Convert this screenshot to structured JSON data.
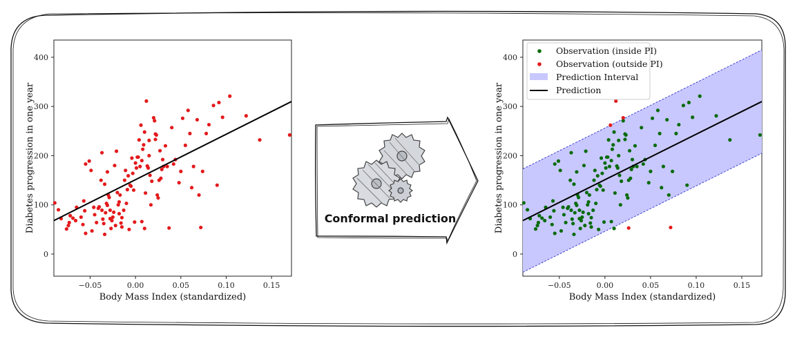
{
  "arrow": {
    "label": "Conformal prediction",
    "icon": "gears-icon"
  },
  "chart_data": [
    {
      "type": "scatter",
      "title": "",
      "xlabel": "Body Mass Index (standardized)",
      "ylabel": "Diabetes progression in one year",
      "xlim": [
        -0.09,
        0.172
      ],
      "ylim": [
        -45,
        435
      ],
      "xticks": [
        "−0.05",
        "0.00",
        "0.05",
        "0.10",
        "0.15"
      ],
      "xtick_values": [
        -0.05,
        0.0,
        0.05,
        0.1,
        0.15
      ],
      "yticks": [
        "0",
        "100",
        "200",
        "300",
        "400"
      ],
      "ytick_values": [
        0,
        100,
        200,
        300,
        400
      ],
      "point_color": "#e31a1c",
      "line_color": "#000000",
      "prediction_line": {
        "x": [
          -0.09,
          0.172
        ],
        "y": [
          68,
          310
        ]
      },
      "points": [
        [
          -0.089,
          104
        ],
        [
          -0.085,
          90
        ],
        [
          -0.082,
          72
        ],
        [
          -0.076,
          51
        ],
        [
          -0.074,
          58
        ],
        [
          -0.073,
          64
        ],
        [
          -0.072,
          78
        ],
        [
          -0.069,
          73
        ],
        [
          -0.066,
          68
        ],
        [
          -0.065,
          95
        ],
        [
          -0.06,
          75
        ],
        [
          -0.058,
          60
        ],
        [
          -0.057,
          108
        ],
        [
          -0.056,
          88
        ],
        [
          -0.055,
          42
        ],
        [
          -0.055,
          183
        ],
        [
          -0.051,
          189
        ],
        [
          -0.049,
          170
        ],
        [
          -0.048,
          47
        ],
        [
          -0.046,
          95
        ],
        [
          -0.045,
          80
        ],
        [
          -0.043,
          64
        ],
        [
          -0.041,
          93
        ],
        [
          -0.04,
          96
        ],
        [
          -0.038,
          150
        ],
        [
          -0.037,
          206
        ],
        [
          -0.037,
          89
        ],
        [
          -0.036,
          71
        ],
        [
          -0.035,
          62
        ],
        [
          -0.034,
          142
        ],
        [
          -0.034,
          40
        ],
        [
          -0.033,
          84
        ],
        [
          -0.032,
          103
        ],
        [
          -0.031,
          99
        ],
        [
          -0.031,
          167
        ],
        [
          -0.03,
          120
        ],
        [
          -0.029,
          115
        ],
        [
          -0.028,
          72
        ],
        [
          -0.028,
          89
        ],
        [
          -0.027,
          52
        ],
        [
          -0.026,
          68
        ],
        [
          -0.025,
          75
        ],
        [
          -0.024,
          85
        ],
        [
          -0.023,
          180
        ],
        [
          -0.022,
          58
        ],
        [
          -0.021,
          209
        ],
        [
          -0.02,
          125
        ],
        [
          -0.019,
          100
        ],
        [
          -0.018,
          82
        ],
        [
          -0.018,
          106
        ],
        [
          -0.017,
          120
        ],
        [
          -0.016,
          63
        ],
        [
          -0.015,
          74
        ],
        [
          -0.015,
          55
        ],
        [
          -0.013,
          89
        ],
        [
          -0.012,
          150
        ],
        [
          -0.011,
          170
        ],
        [
          -0.01,
          103
        ],
        [
          -0.009,
          131
        ],
        [
          -0.008,
          159
        ],
        [
          -0.007,
          50
        ],
        [
          -0.006,
          140
        ],
        [
          -0.005,
          138
        ],
        [
          -0.004,
          195
        ],
        [
          -0.003,
          164
        ],
        [
          -0.002,
          130
        ],
        [
          -0.001,
          65
        ],
        [
          0.0,
          185
        ],
        [
          0.001,
          175
        ],
        [
          0.002,
          197
        ],
        [
          0.003,
          197
        ],
        [
          0.004,
          232
        ],
        [
          0.005,
          178
        ],
        [
          0.006,
          262
        ],
        [
          0.007,
          190
        ],
        [
          0.007,
          66
        ],
        [
          0.008,
          213
        ],
        [
          0.009,
          222
        ],
        [
          0.01,
          52
        ],
        [
          0.01,
          248
        ],
        [
          0.011,
          124
        ],
        [
          0.012,
          311
        ],
        [
          0.013,
          179
        ],
        [
          0.014,
          175
        ],
        [
          0.015,
          200
        ],
        [
          0.015,
          231
        ],
        [
          0.016,
          160
        ],
        [
          0.017,
          100
        ],
        [
          0.018,
          148
        ],
        [
          0.02,
          277
        ],
        [
          0.021,
          271
        ],
        [
          0.022,
          233
        ],
        [
          0.022,
          244
        ],
        [
          0.023,
          242
        ],
        [
          0.024,
          120
        ],
        [
          0.025,
          114
        ],
        [
          0.026,
          150
        ],
        [
          0.027,
          210
        ],
        [
          0.028,
          154
        ],
        [
          0.029,
          172
        ],
        [
          0.03,
          192
        ],
        [
          0.031,
          178
        ],
        [
          0.033,
          220
        ],
        [
          0.035,
          178
        ],
        [
          0.037,
          53
        ],
        [
          0.04,
          257
        ],
        [
          0.042,
          183
        ],
        [
          0.044,
          192
        ],
        [
          0.048,
          145
        ],
        [
          0.05,
          168
        ],
        [
          0.052,
          276
        ],
        [
          0.055,
          221
        ],
        [
          0.058,
          292
        ],
        [
          0.06,
          245
        ],
        [
          0.062,
          135
        ],
        [
          0.064,
          178
        ],
        [
          0.068,
          273
        ],
        [
          0.07,
          120
        ],
        [
          0.072,
          54
        ],
        [
          0.074,
          168
        ],
        [
          0.078,
          245
        ],
        [
          0.081,
          263
        ],
        [
          0.086,
          302
        ],
        [
          0.09,
          140
        ],
        [
          0.092,
          308
        ],
        [
          0.096,
          278
        ],
        [
          0.104,
          321
        ],
        [
          0.122,
          281
        ],
        [
          0.137,
          232
        ],
        [
          0.17,
          242
        ]
      ]
    },
    {
      "type": "scatter",
      "title": "",
      "xlabel": "Body Mass Index (standardized)",
      "ylabel": "Diabetes progression in one year",
      "xlim": [
        -0.09,
        0.172
      ],
      "ylim": [
        -45,
        435
      ],
      "xticks": [
        "−0.05",
        "0.00",
        "0.05",
        "0.10",
        "0.15"
      ],
      "xtick_values": [
        -0.05,
        0.0,
        0.05,
        0.1,
        0.15
      ],
      "yticks": [
        "0",
        "100",
        "200",
        "300",
        "400"
      ],
      "ytick_values": [
        0,
        100,
        200,
        300,
        400
      ],
      "inside_color": "#0a6b0a",
      "outside_color": "#e31a1c",
      "band_color": "#c8c8ff",
      "band_edge_color": "#3333cc",
      "line_color": "#000000",
      "prediction_line": {
        "x": [
          -0.09,
          0.172
        ],
        "y": [
          68,
          310
        ]
      },
      "interval": {
        "x": [
          -0.09,
          0.172
        ],
        "lower": [
          -37,
          205
        ],
        "upper": [
          173,
          415
        ]
      },
      "legend": {
        "position": "upper left",
        "entries": [
          {
            "label": "Observation (inside PI)",
            "kind": "dot-inside"
          },
          {
            "label": "Observation (outside PI)",
            "kind": "dot-outside"
          },
          {
            "label": "Prediction Interval",
            "kind": "band"
          },
          {
            "label": "Prediction",
            "kind": "line"
          }
        ]
      },
      "points_inside": [
        [
          -0.089,
          104
        ],
        [
          -0.085,
          90
        ],
        [
          -0.082,
          72
        ],
        [
          -0.076,
          51
        ],
        [
          -0.074,
          58
        ],
        [
          -0.073,
          64
        ],
        [
          -0.072,
          78
        ],
        [
          -0.069,
          73
        ],
        [
          -0.066,
          68
        ],
        [
          -0.065,
          95
        ],
        [
          -0.06,
          75
        ],
        [
          -0.058,
          60
        ],
        [
          -0.057,
          108
        ],
        [
          -0.056,
          88
        ],
        [
          -0.055,
          42
        ],
        [
          -0.055,
          183
        ],
        [
          -0.051,
          189
        ],
        [
          -0.049,
          170
        ],
        [
          -0.048,
          47
        ],
        [
          -0.046,
          95
        ],
        [
          -0.045,
          80
        ],
        [
          -0.043,
          64
        ],
        [
          -0.041,
          93
        ],
        [
          -0.04,
          96
        ],
        [
          -0.038,
          150
        ],
        [
          -0.037,
          206
        ],
        [
          -0.037,
          89
        ],
        [
          -0.036,
          71
        ],
        [
          -0.035,
          62
        ],
        [
          -0.034,
          142
        ],
        [
          -0.034,
          40
        ],
        [
          -0.033,
          84
        ],
        [
          -0.032,
          103
        ],
        [
          -0.031,
          99
        ],
        [
          -0.031,
          167
        ],
        [
          -0.03,
          120
        ],
        [
          -0.029,
          115
        ],
        [
          -0.028,
          72
        ],
        [
          -0.028,
          89
        ],
        [
          -0.027,
          52
        ],
        [
          -0.026,
          68
        ],
        [
          -0.025,
          75
        ],
        [
          -0.024,
          85
        ],
        [
          -0.023,
          180
        ],
        [
          -0.022,
          58
        ],
        [
          -0.021,
          209
        ],
        [
          -0.02,
          125
        ],
        [
          -0.019,
          100
        ],
        [
          -0.018,
          82
        ],
        [
          -0.018,
          106
        ],
        [
          -0.017,
          120
        ],
        [
          -0.016,
          63
        ],
        [
          -0.015,
          74
        ],
        [
          -0.015,
          55
        ],
        [
          -0.013,
          89
        ],
        [
          -0.012,
          150
        ],
        [
          -0.011,
          170
        ],
        [
          -0.01,
          103
        ],
        [
          -0.009,
          131
        ],
        [
          -0.008,
          159
        ],
        [
          -0.007,
          50
        ],
        [
          -0.006,
          140
        ],
        [
          -0.005,
          138
        ],
        [
          -0.004,
          195
        ],
        [
          -0.003,
          164
        ],
        [
          -0.002,
          130
        ],
        [
          -0.001,
          65
        ],
        [
          0.0,
          185
        ],
        [
          0.001,
          175
        ],
        [
          0.002,
          197
        ],
        [
          0.003,
          197
        ],
        [
          0.004,
          232
        ],
        [
          0.005,
          178
        ],
        [
          0.007,
          190
        ],
        [
          0.007,
          66
        ],
        [
          0.008,
          213
        ],
        [
          0.009,
          222
        ],
        [
          0.01,
          52
        ],
        [
          0.01,
          248
        ],
        [
          0.011,
          124
        ],
        [
          0.013,
          179
        ],
        [
          0.014,
          175
        ],
        [
          0.015,
          200
        ],
        [
          0.015,
          231
        ],
        [
          0.016,
          160
        ],
        [
          0.017,
          100
        ],
        [
          0.018,
          148
        ],
        [
          0.02,
          271
        ],
        [
          0.022,
          233
        ],
        [
          0.022,
          244
        ],
        [
          0.023,
          242
        ],
        [
          0.024,
          120
        ],
        [
          0.025,
          114
        ],
        [
          0.026,
          150
        ],
        [
          0.027,
          210
        ],
        [
          0.028,
          154
        ],
        [
          0.029,
          172
        ],
        [
          0.03,
          192
        ],
        [
          0.031,
          178
        ],
        [
          0.033,
          220
        ],
        [
          0.035,
          178
        ],
        [
          0.04,
          257
        ],
        [
          0.042,
          183
        ],
        [
          0.044,
          192
        ],
        [
          0.048,
          145
        ],
        [
          0.05,
          168
        ],
        [
          0.052,
          276
        ],
        [
          0.055,
          221
        ],
        [
          0.058,
          292
        ],
        [
          0.06,
          245
        ],
        [
          0.062,
          135
        ],
        [
          0.064,
          178
        ],
        [
          0.068,
          273
        ],
        [
          0.07,
          120
        ],
        [
          0.074,
          168
        ],
        [
          0.078,
          245
        ],
        [
          0.081,
          263
        ],
        [
          0.086,
          302
        ],
        [
          0.09,
          140
        ],
        [
          0.092,
          308
        ],
        [
          0.096,
          278
        ],
        [
          0.104,
          321
        ],
        [
          0.122,
          281
        ],
        [
          0.137,
          232
        ],
        [
          0.17,
          242
        ]
      ],
      "points_outside": [
        [
          0.006,
          262
        ],
        [
          0.012,
          311
        ],
        [
          0.02,
          277
        ],
        [
          0.026,
          53
        ],
        [
          0.072,
          54
        ]
      ]
    }
  ]
}
